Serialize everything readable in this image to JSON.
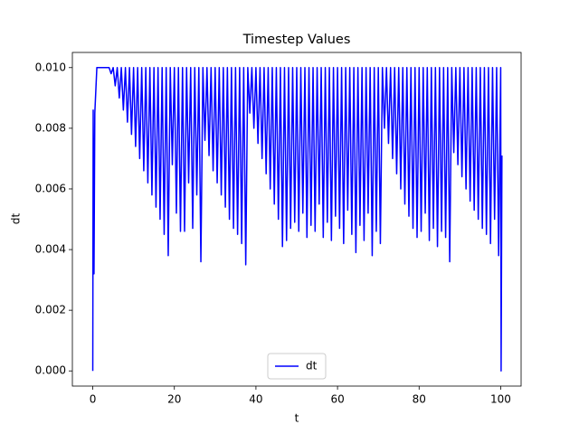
{
  "chart_data": {
    "type": "line",
    "title": "Timestep Values",
    "xlabel": "t",
    "ylabel": "dt",
    "x": [
      0,
      0.1,
      0.3,
      0.5,
      1,
      4,
      4.5,
      5,
      5.5,
      6,
      6.5,
      7,
      7.5,
      8,
      8.5,
      9,
      9.5,
      10,
      10.5,
      11,
      11.5,
      12,
      12.5,
      13,
      13.5,
      14,
      14.5,
      15,
      15.5,
      16,
      16.5,
      17,
      17.5,
      18,
      18.5,
      19,
      19.5,
      20,
      20.5,
      21,
      21.5,
      22,
      22.5,
      23,
      23.5,
      24,
      24.5,
      25,
      25.5,
      26,
      26.5,
      27,
      27.5,
      28,
      28.5,
      29,
      29.5,
      30,
      30.5,
      31,
      31.5,
      32,
      32.5,
      33,
      33.5,
      34,
      34.5,
      35,
      35.5,
      36,
      36.5,
      37,
      37.5,
      38,
      38.5,
      39,
      39.5,
      40,
      40.5,
      41,
      41.5,
      42,
      42.5,
      43,
      43.5,
      44,
      44.5,
      45,
      45.5,
      46,
      46.5,
      47,
      47.5,
      48,
      48.5,
      49,
      49.5,
      50,
      50.5,
      51,
      51.5,
      52,
      52.5,
      53,
      53.5,
      54,
      54.5,
      55,
      55.5,
      56,
      56.5,
      57,
      57.5,
      58,
      58.5,
      59,
      59.5,
      60,
      60.5,
      61,
      61.5,
      62,
      62.5,
      63,
      63.5,
      64,
      64.5,
      65,
      65.5,
      66,
      66.5,
      67,
      67.5,
      68,
      68.5,
      69,
      69.5,
      70,
      70.5,
      71,
      71.5,
      72,
      72.5,
      73,
      73.5,
      74,
      74.5,
      75,
      75.5,
      76,
      76.5,
      77,
      77.5,
      78,
      78.5,
      79,
      79.5,
      80,
      80.5,
      81,
      81.5,
      82,
      82.5,
      83,
      83.5,
      84,
      84.5,
      85,
      85.5,
      86,
      86.5,
      87,
      87.5,
      88,
      88.5,
      89,
      89.5,
      90,
      90.5,
      91,
      91.5,
      92,
      92.5,
      93,
      93.5,
      94,
      94.5,
      95,
      95.5,
      96,
      96.5,
      97,
      97.5,
      98,
      98.5,
      99,
      99.5,
      100,
      100.1,
      100.3
    ],
    "series": [
      {
        "name": "dt",
        "color": "#0000ff",
        "values": [
          0,
          0.0086,
          0.0032,
          0.0085,
          0.01,
          0.01,
          0.0098,
          0.01,
          0.0094,
          0.01,
          0.009,
          0.01,
          0.0086,
          0.01,
          0.0082,
          0.01,
          0.0078,
          0.01,
          0.0074,
          0.01,
          0.007,
          0.01,
          0.0066,
          0.01,
          0.0062,
          0.01,
          0.0058,
          0.01,
          0.0054,
          0.01,
          0.005,
          0.01,
          0.0045,
          0.01,
          0.0038,
          0.01,
          0.0068,
          0.01,
          0.0052,
          0.01,
          0.0046,
          0.01,
          0.0046,
          0.01,
          0.0062,
          0.01,
          0.0047,
          0.01,
          0.0058,
          0.01,
          0.0036,
          0.01,
          0.0076,
          0.01,
          0.0071,
          0.01,
          0.0066,
          0.01,
          0.0062,
          0.01,
          0.0058,
          0.01,
          0.0054,
          0.01,
          0.005,
          0.01,
          0.0047,
          0.01,
          0.0045,
          0.01,
          0.0042,
          0.01,
          0.0035,
          0.01,
          0.0085,
          0.01,
          0.008,
          0.01,
          0.0075,
          0.01,
          0.007,
          0.01,
          0.0065,
          0.01,
          0.006,
          0.01,
          0.0055,
          0.01,
          0.005,
          0.01,
          0.0041,
          0.01,
          0.0043,
          0.01,
          0.0047,
          0.01,
          0.0049,
          0.01,
          0.0046,
          0.01,
          0.0052,
          0.01,
          0.0044,
          0.01,
          0.0048,
          0.01,
          0.0046,
          0.01,
          0.0055,
          0.01,
          0.0044,
          0.01,
          0.0049,
          0.01,
          0.0043,
          0.01,
          0.0051,
          0.01,
          0.0047,
          0.01,
          0.0042,
          0.01,
          0.0053,
          0.01,
          0.0045,
          0.01,
          0.0039,
          0.01,
          0.0048,
          0.01,
          0.0043,
          0.01,
          0.0052,
          0.01,
          0.0038,
          0.01,
          0.0046,
          0.01,
          0.0042,
          0.01,
          0.008,
          0.01,
          0.0075,
          0.01,
          0.007,
          0.01,
          0.0065,
          0.01,
          0.006,
          0.01,
          0.0055,
          0.01,
          0.0051,
          0.01,
          0.0047,
          0.01,
          0.0044,
          0.01,
          0.0046,
          0.01,
          0.0052,
          0.01,
          0.0043,
          0.01,
          0.0047,
          0.01,
          0.0041,
          0.01,
          0.0046,
          0.01,
          0.0044,
          0.01,
          0.0036,
          0.01,
          0.0072,
          0.01,
          0.0068,
          0.01,
          0.0064,
          0.01,
          0.006,
          0.01,
          0.0056,
          0.01,
          0.0053,
          0.01,
          0.005,
          0.01,
          0.0047,
          0.01,
          0.0045,
          0.01,
          0.0042,
          0.01,
          0.005,
          0.01,
          0.0038,
          0.01,
          0,
          0.0071
        ]
      }
    ],
    "xlim": [
      -5,
      105
    ],
    "ylim": [
      -0.0005,
      0.0105
    ],
    "xticks": [
      0,
      20,
      40,
      60,
      80,
      100
    ],
    "yticks": [
      {
        "value": 0,
        "label": "0.000"
      },
      {
        "value": 0.002,
        "label": "0.002"
      },
      {
        "value": 0.004,
        "label": "0.004"
      },
      {
        "value": 0.006,
        "label": "0.006"
      },
      {
        "value": 0.008,
        "label": "0.008"
      },
      {
        "value": 0.01,
        "label": "0.010"
      }
    ],
    "legend": "lower center",
    "grid": false
  }
}
